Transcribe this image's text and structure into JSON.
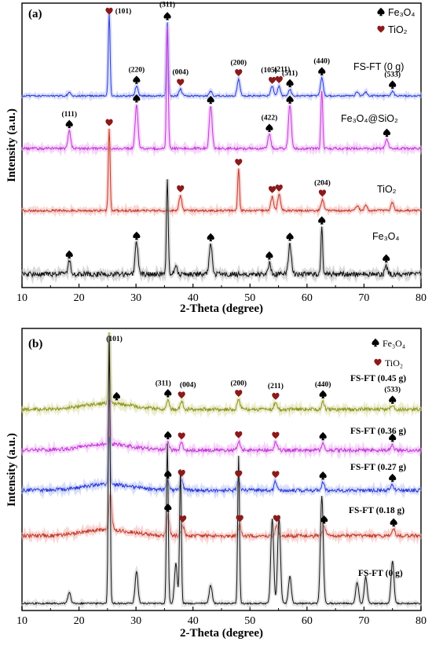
{
  "chart_data": [
    {
      "panel_label": "(a)",
      "type": "line",
      "xlabel": "2-Theta (degree)",
      "ylabel": "Intensity (a.u.)",
      "xlim": [
        10,
        80
      ],
      "xticks": [
        "10",
        "20",
        "30",
        "40",
        "50",
        "60",
        "70",
        "80"
      ],
      "legend": [
        {
          "symbol": "spade",
          "label": "Fe₃O₄",
          "color": "#000000"
        },
        {
          "symbol": "heart",
          "label": "TiO₂",
          "color": "#8b1a1a"
        }
      ],
      "series": [
        {
          "name": "FS-FT (0 g)",
          "color": "#2b3bd6",
          "glow": "#b9c2f5",
          "peaks": [
            [
              18.3,
              0.04
            ],
            [
              25.3,
              1.0
            ],
            [
              30.1,
              0.12
            ],
            [
              35.5,
              0.9
            ],
            [
              37.8,
              0.08
            ],
            [
              43.1,
              0.05
            ],
            [
              48.0,
              0.2
            ],
            [
              53.9,
              0.12
            ],
            [
              55.1,
              0.12
            ],
            [
              57.0,
              0.08
            ],
            [
              62.6,
              0.22
            ],
            [
              68.8,
              0.05
            ],
            [
              70.3,
              0.05
            ],
            [
              75.0,
              0.06
            ]
          ],
          "annotations": [
            {
              "x": 25.3,
              "symbol": "heart",
              "label": "(101)"
            },
            {
              "x": 30.1,
              "symbol": "spade",
              "label": "(220)"
            },
            {
              "x": 35.5,
              "symbol": "spade",
              "label": "(311)"
            },
            {
              "x": 37.8,
              "symbol": "heart",
              "label": "(004)"
            },
            {
              "x": 48.0,
              "symbol": "heart",
              "label": "(200)"
            },
            {
              "x": 53.9,
              "symbol": "heart",
              "label": "(105)"
            },
            {
              "x": 55.1,
              "symbol": "heart",
              "label": "(211)"
            },
            {
              "x": 57.0,
              "symbol": "spade",
              "label": "(511)"
            },
            {
              "x": 62.6,
              "symbol": "spade",
              "label": "(440)"
            },
            {
              "x": 75.0,
              "symbol": "spade",
              "label": "(533)"
            }
          ]
        },
        {
          "name": "Fe₃O₄@SiO₂",
          "color": "#c23bd6",
          "glow": "#efb5f5",
          "peaks": [
            [
              18.3,
              0.14
            ],
            [
              30.1,
              0.35
            ],
            [
              35.5,
              1.0
            ],
            [
              43.1,
              0.35
            ],
            [
              53.4,
              0.12
            ],
            [
              57.0,
              0.36
            ],
            [
              62.6,
              0.48
            ],
            [
              74.0,
              0.08
            ]
          ],
          "annotations": [
            {
              "x": 18.3,
              "symbol": "spade",
              "label": "(111)"
            },
            {
              "x": 30.1,
              "symbol": "spade",
              "label": ""
            },
            {
              "x": 43.1,
              "symbol": "spade",
              "label": ""
            },
            {
              "x": 53.4,
              "symbol": "spade",
              "label": "(422)"
            },
            {
              "x": 57.0,
              "symbol": "spade",
              "label": ""
            },
            {
              "x": 74.0,
              "symbol": "spade",
              "label": ""
            }
          ]
        },
        {
          "name": "TiO₂",
          "color": "#c0392b",
          "glow": "#f3b6b0",
          "peaks": [
            [
              25.3,
              1.0
            ],
            [
              37.8,
              0.18
            ],
            [
              48.0,
              0.52
            ],
            [
              53.9,
              0.17
            ],
            [
              55.1,
              0.2
            ],
            [
              62.7,
              0.13
            ],
            [
              68.8,
              0.06
            ],
            [
              70.3,
              0.07
            ],
            [
              75.0,
              0.1
            ]
          ],
          "annotations": [
            {
              "x": 25.3,
              "symbol": "heart",
              "label": ""
            },
            {
              "x": 37.8,
              "symbol": "heart",
              "label": ""
            },
            {
              "x": 48.0,
              "symbol": "heart",
              "label": ""
            },
            {
              "x": 53.9,
              "symbol": "heart",
              "label": ""
            },
            {
              "x": 55.1,
              "symbol": "heart",
              "label": ""
            },
            {
              "x": 62.7,
              "symbol": "heart",
              "label": "(204)"
            }
          ]
        },
        {
          "name": "Fe₃O₄",
          "color": "#111111",
          "glow": "#bbbbbb",
          "peaks": [
            [
              18.3,
              0.14
            ],
            [
              30.1,
              0.35
            ],
            [
              35.5,
              1.0
            ],
            [
              37.0,
              0.08
            ],
            [
              43.1,
              0.34
            ],
            [
              53.4,
              0.11
            ],
            [
              57.0,
              0.33
            ],
            [
              62.6,
              0.5
            ],
            [
              73.9,
              0.08
            ]
          ],
          "annotations": [
            {
              "x": 18.3,
              "symbol": "spade",
              "label": ""
            },
            {
              "x": 30.1,
              "symbol": "spade",
              "label": ""
            },
            {
              "x": 43.1,
              "symbol": "spade",
              "label": ""
            },
            {
              "x": 53.4,
              "symbol": "spade",
              "label": ""
            },
            {
              "x": 57.0,
              "symbol": "spade",
              "label": ""
            },
            {
              "x": 62.6,
              "symbol": "spade",
              "label": ""
            },
            {
              "x": 73.9,
              "symbol": "spade",
              "label": ""
            }
          ]
        }
      ]
    },
    {
      "panel_label": "(b)",
      "type": "line",
      "xlabel": "2-Theta (degree)",
      "ylabel": "Intensity (a.u.)",
      "xlim": [
        10,
        80
      ],
      "xticks": [
        "10",
        "20",
        "30",
        "40",
        "50",
        "60",
        "70",
        "80"
      ],
      "legend": [
        {
          "symbol": "spade",
          "label": "Fe₃O₄",
          "color": "#000000"
        },
        {
          "symbol": "heart",
          "label": "TiO₂",
          "color": "#8b1a1a"
        }
      ],
      "series": [
        {
          "name": "FS-FT (0.45 g)",
          "color": "#8f9223",
          "glow": "#dde0a8",
          "peaks": [
            [
              25.3,
              0.7
            ],
            [
              35.6,
              0.1
            ],
            [
              38.0,
              0.08
            ],
            [
              48.0,
              0.1
            ],
            [
              54.5,
              0.08
            ],
            [
              62.8,
              0.07
            ],
            [
              75.0,
              0.05
            ]
          ],
          "annotations": [
            {
              "x": 26.6,
              "symbol": "spade",
              "label": "(101)"
            },
            {
              "x": 35.6,
              "symbol": "spade",
              "label": "(311)"
            },
            {
              "x": 38.0,
              "symbol": "heart",
              "label": "(004)"
            },
            {
              "x": 48.0,
              "symbol": "heart",
              "label": "(200)"
            },
            {
              "x": 54.5,
              "symbol": "heart",
              "label": "(211)"
            },
            {
              "x": 62.8,
              "symbol": "spade",
              "label": "(440)"
            },
            {
              "x": 75.0,
              "symbol": "spade",
              "label": "(533)"
            }
          ]
        },
        {
          "name": "FS-FT (0.36 g)",
          "color": "#c23bd6",
          "glow": "#efb5f5",
          "peaks": [
            [
              25.3,
              0.45
            ],
            [
              35.6,
              0.08
            ],
            [
              38.0,
              0.08
            ],
            [
              48.0,
              0.08
            ],
            [
              54.5,
              0.08
            ],
            [
              62.8,
              0.06
            ],
            [
              75.0,
              0.05
            ]
          ],
          "annotations": [
            {
              "x": 35.6,
              "symbol": "spade",
              "label": ""
            },
            {
              "x": 38.0,
              "symbol": "heart",
              "label": ""
            },
            {
              "x": 48.0,
              "symbol": "heart",
              "label": ""
            },
            {
              "x": 54.5,
              "symbol": "heart",
              "label": ""
            },
            {
              "x": 62.8,
              "symbol": "spade",
              "label": ""
            },
            {
              "x": 75.0,
              "symbol": "spade",
              "label": ""
            }
          ]
        },
        {
          "name": "FS-FT (0.27 g)",
          "color": "#2b3bd6",
          "glow": "#b9c2f5",
          "peaks": [
            [
              25.3,
              0.48
            ],
            [
              35.6,
              0.09
            ],
            [
              38.0,
              0.1
            ],
            [
              48.0,
              0.1
            ],
            [
              54.5,
              0.09
            ],
            [
              62.8,
              0.08
            ],
            [
              75.0,
              0.05
            ]
          ],
          "annotations": [
            {
              "x": 35.6,
              "symbol": "spade",
              "label": ""
            },
            {
              "x": 38.0,
              "symbol": "heart",
              "label": ""
            },
            {
              "x": 48.0,
              "symbol": "heart",
              "label": ""
            },
            {
              "x": 54.5,
              "symbol": "heart",
              "label": ""
            },
            {
              "x": 62.8,
              "symbol": "spade",
              "label": ""
            },
            {
              "x": 75.0,
              "symbol": "spade",
              "label": ""
            }
          ]
        },
        {
          "name": "FS-FT (0.18 g)",
          "color": "#c0392b",
          "glow": "#f3b6b0",
          "peaks": [
            [
              25.5,
              0.36
            ],
            [
              35.6,
              0.2
            ],
            [
              38.2,
              0.1
            ],
            [
              48.2,
              0.1
            ],
            [
              54.7,
              0.1
            ],
            [
              63.0,
              0.1
            ],
            [
              75.2,
              0.06
            ]
          ],
          "annotations": [
            {
              "x": 35.6,
              "symbol": "spade",
              "label": ""
            },
            {
              "x": 38.2,
              "symbol": "heart",
              "label": ""
            },
            {
              "x": 48.2,
              "symbol": "heart",
              "label": ""
            },
            {
              "x": 54.7,
              "symbol": "heart",
              "label": ""
            },
            {
              "x": 63.0,
              "symbol": "spade",
              "label": ""
            },
            {
              "x": 75.2,
              "symbol": "spade",
              "label": ""
            }
          ]
        },
        {
          "name": "FS-FT (0 g)",
          "color": "#111111",
          "glow": "#cccccc",
          "peaks": [
            [
              18.3,
              0.04
            ],
            [
              25.3,
              1.0
            ],
            [
              30.1,
              0.12
            ],
            [
              35.5,
              0.6
            ],
            [
              37.0,
              0.15
            ],
            [
              37.8,
              0.5
            ],
            [
              43.1,
              0.07
            ],
            [
              48.0,
              0.55
            ],
            [
              53.9,
              0.32
            ],
            [
              55.1,
              0.32
            ],
            [
              57.0,
              0.1
            ],
            [
              62.6,
              0.4
            ],
            [
              68.8,
              0.08
            ],
            [
              70.3,
              0.1
            ],
            [
              75.0,
              0.16
            ]
          ],
          "annotations": []
        }
      ]
    }
  ]
}
